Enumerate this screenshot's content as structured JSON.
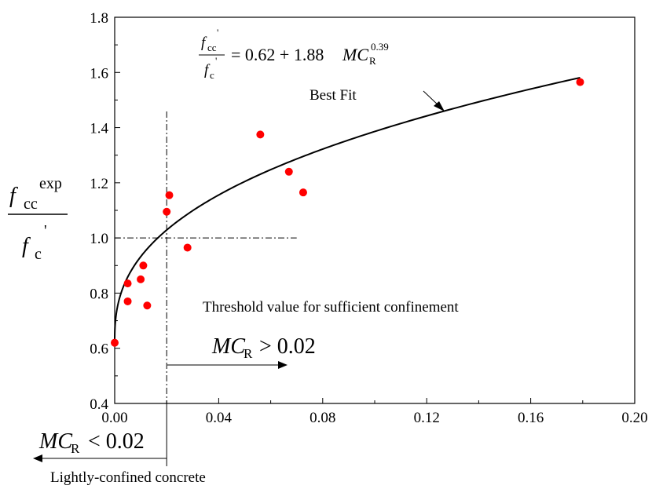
{
  "chart_data": {
    "type": "scatter",
    "title": "",
    "xlim": [
      0,
      0.2
    ],
    "ylim": [
      0.4,
      1.8
    ],
    "x_ticks": [
      "0.00",
      "0.04",
      "0.08",
      "0.12",
      "0.16",
      "0.20"
    ],
    "y_ticks": [
      "0.4",
      "0.6",
      "0.8",
      "1.0",
      "1.2",
      "1.4",
      "1.6",
      "1.8"
    ],
    "grid": false,
    "ylabel": {
      "numerator_base": "f",
      "numerator_sub": "cc",
      "numerator_sup": "exp",
      "denominator_base": "f",
      "denominator_sub": "c",
      "denominator_sup": "'"
    },
    "series": [
      {
        "name": "",
        "marker_color": "#ff0000",
        "x": [
          0.0,
          0.005,
          0.005,
          0.01,
          0.011,
          0.0125,
          0.02,
          0.021,
          0.028,
          0.056,
          0.067,
          0.0725,
          0.179
        ],
        "y": [
          0.62,
          0.77,
          0.835,
          0.85,
          0.9,
          0.755,
          1.095,
          1.155,
          0.965,
          1.375,
          1.24,
          1.165,
          1.565
        ]
      }
    ],
    "fit_curve": {
      "label": "Best Fit",
      "a": 0.62,
      "b": 1.88,
      "exponent": 0.39,
      "x_range": [
        0,
        0.179
      ],
      "equation": {
        "lhs_num_base": "f",
        "lhs_num_sub": "cc",
        "lhs_num_sup": "'",
        "lhs_den_base": "f",
        "lhs_den_sub": "c",
        "lhs_den_sup": "'",
        "rhs_prefix": "= 0.62 + 1.88",
        "rhs_var": "MC",
        "rhs_sub": "R",
        "rhs_sup": "0.39"
      }
    },
    "reference_lines": {
      "vertical_x": 0.02,
      "horizontal_y": 1.0,
      "horizontal_x_range": [
        0,
        0.07
      ]
    },
    "annotations": {
      "threshold_text": "Threshold value for sufficient confinement",
      "right_arrow_var": "MC",
      "right_arrow_sub": "R",
      "right_arrow_rel": "> 0.02",
      "left_arrow_var": "MC",
      "left_arrow_sub": "R",
      "left_arrow_rel": "< 0.02",
      "bottom_text": "Lightly-confined concrete"
    }
  }
}
